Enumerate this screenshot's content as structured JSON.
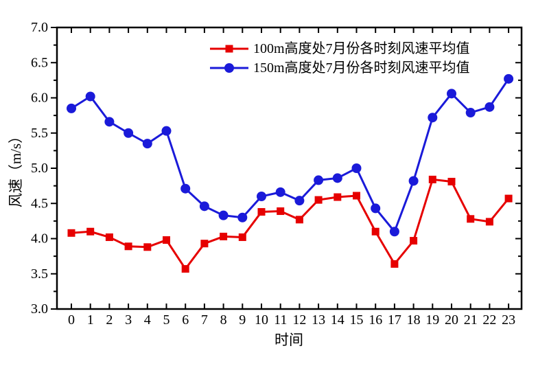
{
  "figure": {
    "background": "#ffffff",
    "frame_color": "#000000"
  },
  "chart_data": {
    "type": "line",
    "title": "",
    "xlabel": "时间",
    "ylabel": "风速（m/s）",
    "xlim": [
      -0.75,
      23.75
    ],
    "ylim": [
      3.0,
      7.0
    ],
    "ytick_step": 0.5,
    "yminor_step": 0.25,
    "ytick_labels": [
      "3.0",
      "3.5",
      "4.0",
      "4.5",
      "5.0",
      "5.5",
      "6.0",
      "6.5",
      "7.0"
    ],
    "grid": false,
    "legend_position": "top-center-inside",
    "x": [
      0,
      1,
      2,
      3,
      4,
      5,
      6,
      7,
      8,
      9,
      10,
      11,
      12,
      13,
      14,
      15,
      16,
      17,
      18,
      19,
      20,
      21,
      22,
      23
    ],
    "series": [
      {
        "name": "100m高度处7月份各时刻风速平均值",
        "color": "#e60000",
        "marker": "square",
        "values": [
          4.08,
          4.1,
          4.02,
          3.89,
          3.88,
          3.98,
          3.57,
          3.93,
          4.03,
          4.02,
          4.38,
          4.39,
          4.27,
          4.55,
          4.59,
          4.61,
          4.1,
          3.64,
          3.97,
          4.84,
          4.81,
          4.28,
          4.24,
          4.57
        ]
      },
      {
        "name": "150m高度处7月份各时刻风速平均值",
        "color": "#1a1ad9",
        "marker": "circle",
        "values": [
          5.85,
          6.02,
          5.66,
          5.5,
          5.35,
          5.53,
          4.71,
          4.46,
          4.33,
          4.3,
          4.6,
          4.66,
          4.54,
          4.83,
          4.86,
          5.0,
          4.43,
          4.1,
          4.82,
          5.72,
          6.06,
          5.79,
          5.87,
          6.27
        ]
      }
    ]
  }
}
